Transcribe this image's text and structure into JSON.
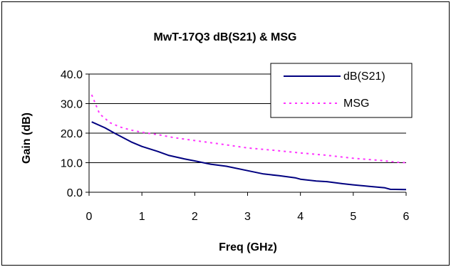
{
  "chart_data": {
    "type": "line",
    "title": "MwT-17Q3 dB(S21) & MSG",
    "xlabel": "Freq (GHz)",
    "ylabel": "Gain (dB)",
    "xlim": [
      0,
      6
    ],
    "ylim": [
      0,
      40
    ],
    "x_ticks": [
      "0",
      "1",
      "2",
      "3",
      "4",
      "5",
      "6"
    ],
    "y_ticks": [
      "0.0",
      "10.0",
      "20.0",
      "30.0",
      "40.0"
    ],
    "grid": "horizontal",
    "legend_position": "top-right",
    "series": [
      {
        "name": "dB(S21)",
        "color": "#000080",
        "style": "solid",
        "x": [
          0.05,
          0.3,
          0.5,
          0.8,
          1.0,
          1.3,
          1.5,
          1.8,
          2.0,
          2.3,
          2.6,
          3.0,
          3.3,
          3.6,
          3.9,
          4.0,
          4.3,
          4.5,
          4.8,
          5.0,
          5.3,
          5.6,
          5.7,
          6.0
        ],
        "y": [
          23.8,
          21.8,
          19.8,
          17.0,
          15.5,
          13.8,
          12.5,
          11.3,
          10.6,
          9.5,
          8.8,
          7.3,
          6.2,
          5.6,
          4.9,
          4.4,
          3.8,
          3.6,
          2.9,
          2.5,
          2.0,
          1.5,
          1.0,
          0.9
        ]
      },
      {
        "name": "MSG",
        "color": "#ff33ff",
        "style": "dotted",
        "x": [
          0.05,
          0.2,
          0.4,
          0.6,
          0.8,
          1.0,
          1.3,
          1.6,
          2.0,
          2.5,
          3.0,
          3.5,
          4.0,
          4.5,
          5.0,
          5.5,
          5.8,
          6.0
        ],
        "y": [
          33.0,
          26.5,
          23.5,
          22.0,
          21.0,
          20.3,
          19.5,
          18.5,
          17.5,
          16.3,
          15.0,
          14.2,
          13.3,
          12.5,
          11.5,
          10.8,
          10.2,
          10.0
        ]
      }
    ]
  }
}
